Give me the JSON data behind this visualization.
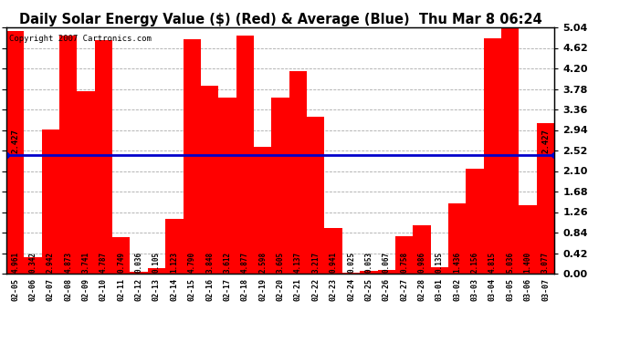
{
  "title": "Daily Solar Energy Value ($) (Red) & Average (Blue)  Thu Mar 8 06:24",
  "copyright": "Copyright 2007 Cartronics.com",
  "categories": [
    "02-05",
    "02-06",
    "02-07",
    "02-08",
    "02-09",
    "02-10",
    "02-11",
    "02-12",
    "02-13",
    "02-14",
    "02-15",
    "02-16",
    "02-17",
    "02-18",
    "02-19",
    "02-20",
    "02-21",
    "02-22",
    "02-23",
    "02-24",
    "02-25",
    "02-26",
    "02-27",
    "02-28",
    "03-01",
    "03-02",
    "03-03",
    "03-04",
    "03-05",
    "03-06",
    "03-07"
  ],
  "values": [
    4.961,
    0.342,
    2.942,
    4.873,
    3.741,
    4.787,
    0.749,
    0.036,
    0.105,
    1.123,
    4.79,
    3.848,
    3.612,
    4.877,
    2.598,
    3.605,
    4.137,
    3.217,
    0.941,
    0.025,
    0.053,
    0.067,
    0.758,
    0.986,
    0.135,
    1.436,
    2.156,
    4.815,
    5.036,
    1.4,
    3.077
  ],
  "average": 2.427,
  "bar_color": "#ff0000",
  "avg_line_color": "#0000cc",
  "background_color": "#ffffff",
  "plot_bg_color": "#ffffff",
  "grid_color": "#aaaaaa",
  "ylim": [
    0,
    5.04
  ],
  "yticks": [
    0.0,
    0.42,
    0.84,
    1.26,
    1.68,
    2.1,
    2.52,
    2.94,
    3.36,
    3.78,
    4.2,
    4.62,
    5.04
  ],
  "title_fontsize": 10.5,
  "copyright_fontsize": 6.5,
  "bar_label_fontsize": 5.5,
  "avg_label": "2.427",
  "avg_label_fontsize": 6.5,
  "right_ytick_fontsize": 8
}
